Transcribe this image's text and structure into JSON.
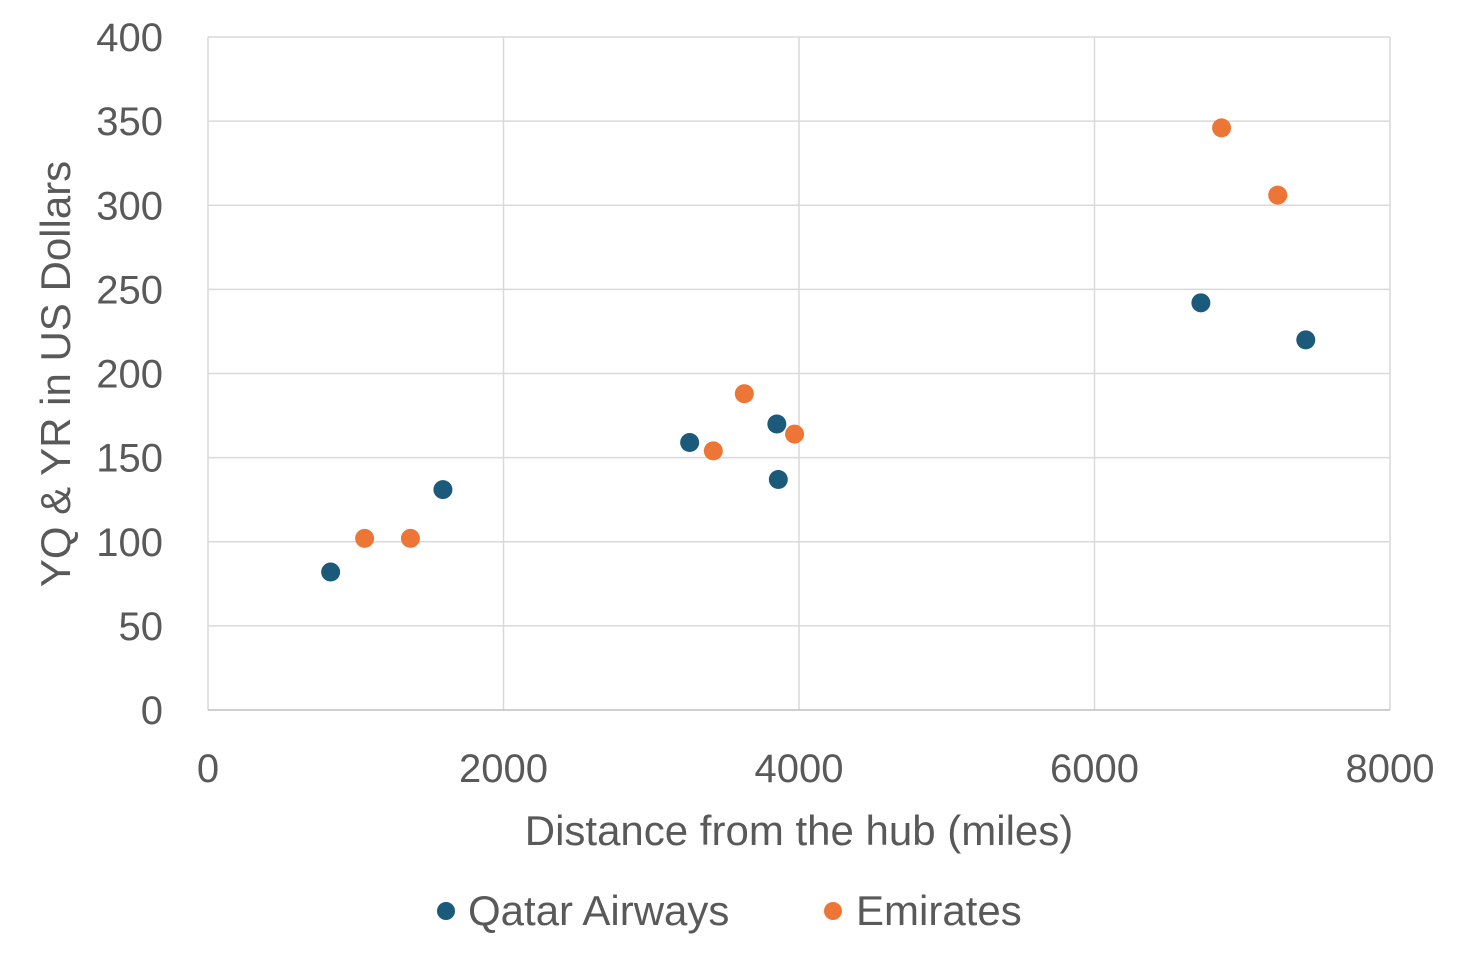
{
  "chart_data": {
    "type": "scatter",
    "xlabel": "Distance from the hub (miles)",
    "ylabel": "YQ & YR in US Dollars",
    "xlim": [
      0,
      8000
    ],
    "ylim": [
      0,
      400
    ],
    "x_ticks": [
      "0",
      "2000",
      "4000",
      "6000",
      "8000"
    ],
    "y_ticks": [
      "0",
      "50",
      "100",
      "150",
      "200",
      "250",
      "300",
      "350",
      "400"
    ],
    "grid": true,
    "legend_position": "bottom",
    "series": [
      {
        "name": "Qatar Airways",
        "color": "#1b5a7a",
        "points": [
          {
            "x": 830,
            "y": 82
          },
          {
            "x": 1590,
            "y": 131
          },
          {
            "x": 3260,
            "y": 159
          },
          {
            "x": 3850,
            "y": 170
          },
          {
            "x": 3860,
            "y": 137
          },
          {
            "x": 6720,
            "y": 242
          },
          {
            "x": 7430,
            "y": 220
          }
        ]
      },
      {
        "name": "Emirates",
        "color": "#ed7536",
        "points": [
          {
            "x": 1060,
            "y": 102
          },
          {
            "x": 1370,
            "y": 102
          },
          {
            "x": 3420,
            "y": 154
          },
          {
            "x": 3630,
            "y": 188
          },
          {
            "x": 3970,
            "y": 164
          },
          {
            "x": 6860,
            "y": 346
          },
          {
            "x": 7240,
            "y": 306
          }
        ]
      }
    ]
  }
}
